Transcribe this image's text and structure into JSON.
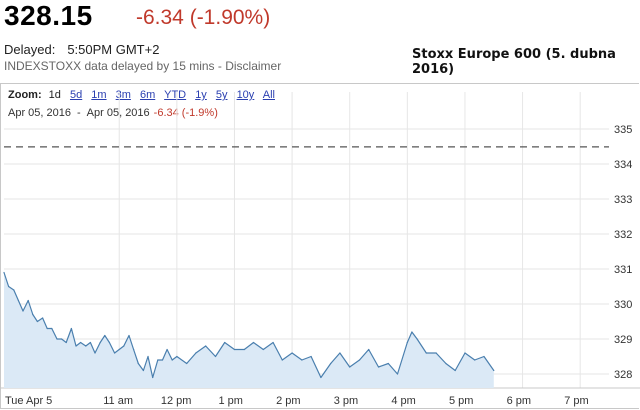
{
  "quote": {
    "price": "328.15",
    "change": "-6.34 (-1.90%)",
    "delayed_label": "Delayed:",
    "delayed_time": "5:50PM GMT+2",
    "source_text": "INDEXSTOXX data delayed by 15 mins - Disclaimer"
  },
  "caption": "Stoxx Europe 600 (5. dubna 2016)",
  "zoom": {
    "label": "Zoom:",
    "options": [
      "1d",
      "5d",
      "1m",
      "3m",
      "6m",
      "YTD",
      "1y",
      "5y",
      "10y",
      "All"
    ],
    "active": "1d"
  },
  "range": {
    "from": "Apr 05, 2016",
    "separator": "-",
    "to": "Apr 05, 2016",
    "change": "-6.34 (-1.9%)"
  },
  "colors": {
    "line": "#4a7fae",
    "fill": "#dbe9f6",
    "prev_close": "#555555",
    "grid": "#e6e6e6",
    "negative": "#c0392b"
  },
  "chart_data": {
    "type": "area",
    "x_tick_labels": [
      "Tue Apr 5",
      "11 am",
      "12 pm",
      "1 pm",
      "2 pm",
      "3 pm",
      "4 pm",
      "5 pm",
      "6 pm",
      "7 pm"
    ],
    "y_tick_labels": [
      "335",
      "334",
      "333",
      "332",
      "331",
      "330",
      "329",
      "328"
    ],
    "ylim": [
      327.6,
      335.2
    ],
    "previous_close": 334.49,
    "grid": true,
    "x_unit": "hours",
    "x_range": [
      9.0,
      19.5
    ],
    "series": [
      {
        "x": [
          9.0,
          9.08,
          9.17,
          9.25,
          9.33,
          9.42,
          9.5,
          9.58,
          9.67,
          9.75,
          9.83,
          9.92,
          10.0,
          10.08,
          10.17,
          10.25,
          10.33,
          10.42,
          10.5,
          10.58,
          10.67,
          10.75,
          10.83,
          10.92,
          11.0,
          11.08,
          11.17,
          11.25,
          11.33,
          11.42,
          11.5,
          11.58,
          11.67,
          11.75,
          11.83,
          11.92,
          12.0,
          12.17,
          12.33,
          12.5,
          12.67,
          12.83,
          13.0,
          13.17,
          13.33,
          13.5,
          13.67,
          13.83,
          14.0,
          14.17,
          14.33,
          14.5,
          14.67,
          14.83,
          15.0,
          15.17,
          15.33,
          15.5,
          15.67,
          15.83,
          16.0,
          16.08,
          16.17,
          16.33,
          16.5,
          16.67,
          16.83,
          17.0,
          17.17,
          17.33,
          17.5
        ],
        "y": [
          330.9,
          330.5,
          330.4,
          330.1,
          329.8,
          330.1,
          329.7,
          329.5,
          329.6,
          329.3,
          329.3,
          329.0,
          329.0,
          328.9,
          329.3,
          328.8,
          328.9,
          328.8,
          328.9,
          328.6,
          328.9,
          329.1,
          328.9,
          328.6,
          328.7,
          328.8,
          329.1,
          328.7,
          328.3,
          328.1,
          328.5,
          327.9,
          328.4,
          328.4,
          328.7,
          328.4,
          328.5,
          328.3,
          328.6,
          328.8,
          328.5,
          328.9,
          328.7,
          328.7,
          328.9,
          328.7,
          328.9,
          328.4,
          328.6,
          328.4,
          328.5,
          327.9,
          328.3,
          328.6,
          328.2,
          328.4,
          328.7,
          328.2,
          328.3,
          328.0,
          328.9,
          329.2,
          329.0,
          328.6,
          328.6,
          328.3,
          328.1,
          328.6,
          328.4,
          328.5,
          328.1
        ]
      }
    ]
  }
}
